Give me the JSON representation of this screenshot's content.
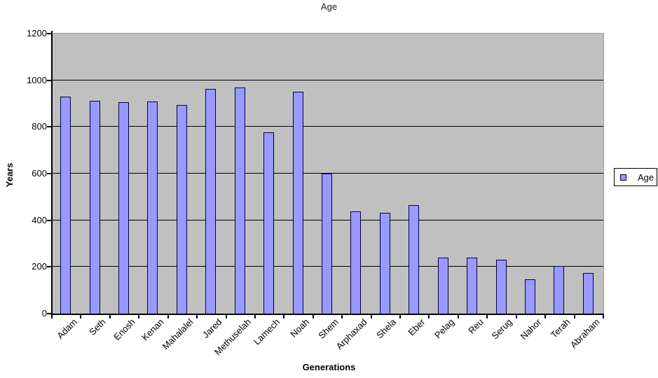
{
  "chart_data": {
    "type": "bar",
    "title": "Age",
    "xlabel": "Generations",
    "ylabel": "Years",
    "legend": [
      "Age"
    ],
    "legend_position": "right",
    "categories": [
      "Adam",
      "Seth",
      "Enosh",
      "Kenan",
      "Mahalalel",
      "Jared",
      "Methuselah",
      "Lamech",
      "Noah",
      "Shem",
      "Arphaxad",
      "Shela",
      "Eber",
      "Pelag",
      "Reu",
      "Serug",
      "Nahor",
      "Terah",
      "Abraham"
    ],
    "values": [
      930,
      912,
      905,
      910,
      895,
      962,
      969,
      777,
      950,
      600,
      438,
      433,
      464,
      239,
      239,
      230,
      148,
      205,
      175
    ],
    "ylim": [
      0,
      1200
    ],
    "yticks": [
      0,
      200,
      400,
      600,
      800,
      1000,
      1200
    ],
    "grid": "horizontal",
    "colors": {
      "bar_fill": "#9999FF",
      "bar_border": "#000040",
      "plot_bg": "#C0C0C0",
      "gridline": "#000000",
      "axis": "#000000",
      "background": "#FFFFFF",
      "text": "#000000"
    }
  }
}
